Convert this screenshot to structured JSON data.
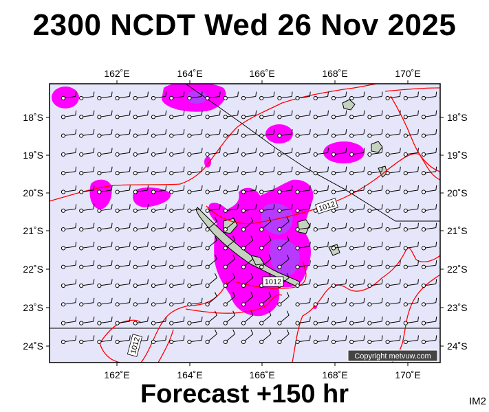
{
  "title": "2300 NCDT Wed 26 Nov 2025",
  "footer": "Forecast +150 hr",
  "model_tag": "IM2",
  "copyright": "Copyright metvuw.com",
  "axes": {
    "lon_labels": [
      "162˚E",
      "164˚E",
      "166˚E",
      "168˚E",
      "170˚E"
    ],
    "lat_labels": [
      "18˚S",
      "19˚S",
      "20˚S",
      "21˚S",
      "22˚S",
      "23˚S",
      "24˚S"
    ]
  },
  "isobar_labels": [
    "1012",
    "1012",
    "1012"
  ],
  "colors": {
    "ocean": "#e6e6fa",
    "land": "#c6d2c0",
    "rain_magenta": "#ff00ff",
    "rain_purple": "#aa44ff",
    "isobar": "#ff0000",
    "border": "#000000"
  }
}
